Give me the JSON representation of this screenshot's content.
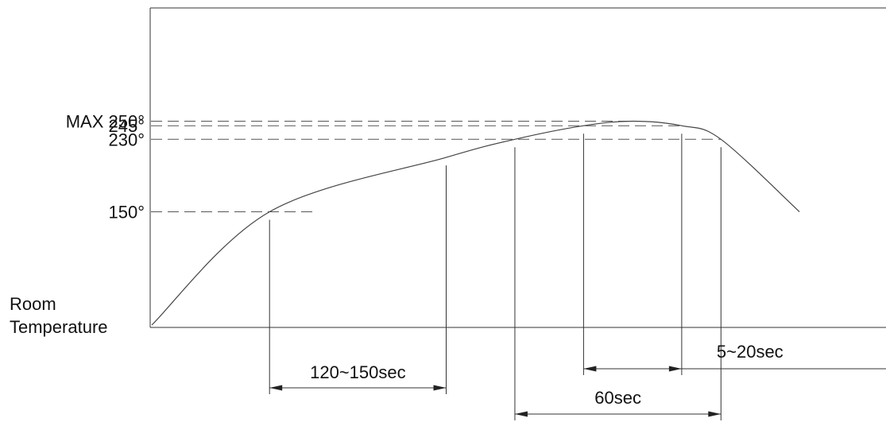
{
  "chart_data": {
    "type": "line",
    "title": "",
    "xlabel": "",
    "ylabel": "",
    "y_tick_labels": [
      {
        "label": "MAX 250°",
        "value": 250
      },
      {
        "label": "245°",
        "value": 245
      },
      {
        "label": "230°",
        "value": 230
      },
      {
        "label": "150°",
        "value": 150
      }
    ],
    "y_base_label": {
      "line1": "Room",
      "line2": "Temperature"
    },
    "series": [
      {
        "values": [
          {
            "x": 0,
            "y": 25
          },
          {
            "x": 60,
            "y": 150
          },
          {
            "x": 150,
            "y": 210
          },
          {
            "x": 185,
            "y": 230
          },
          {
            "x": 220,
            "y": 245
          },
          {
            "x": 245,
            "y": 250
          },
          {
            "x": 270,
            "y": 245
          },
          {
            "x": 290,
            "y": 230
          },
          {
            "x": 330,
            "y": 150
          }
        ]
      }
    ],
    "dimension_intervals": [
      {
        "label": "120~150sec",
        "from_x": 60,
        "to_x": 150
      },
      {
        "label": "60sec",
        "from_x": 185,
        "to_x": 290
      },
      {
        "label": "5~20sec",
        "from_x": 220,
        "to_x": 270
      }
    ],
    "grid": false,
    "legend": "none"
  }
}
